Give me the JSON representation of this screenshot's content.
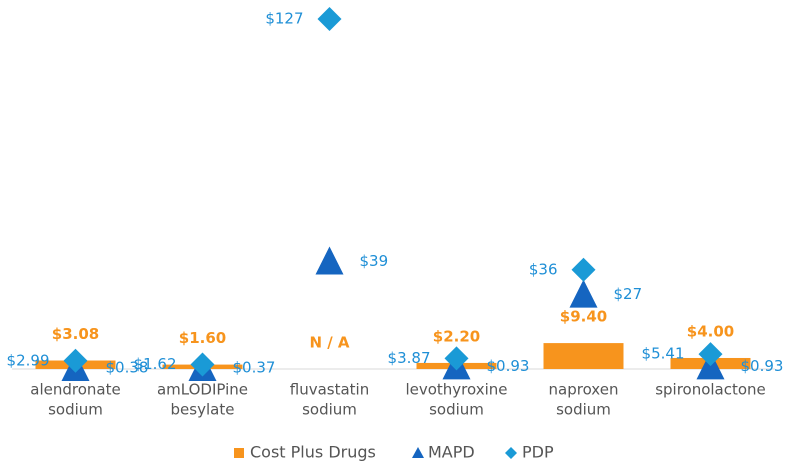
{
  "chart_data": {
    "type": "combo",
    "categories": [
      [
        "alendronate",
        "sodium"
      ],
      [
        "amLODIPine",
        "besylate"
      ],
      [
        "fluvastatin",
        "sodium"
      ],
      [
        "levothyroxine",
        "sodium"
      ],
      [
        "naproxen",
        "sodium"
      ],
      [
        "spironolactone"
      ]
    ],
    "ylim": [
      0,
      127
    ],
    "series": [
      {
        "name": "Cost Plus Drugs",
        "kind": "bar",
        "color": "#f7941d",
        "values": [
          3.08,
          1.6,
          null,
          2.2,
          9.4,
          4.0
        ],
        "value_labels": [
          "$3.08",
          "$1.60",
          "N / A",
          "$2.20",
          "$9.40",
          "$4.00"
        ]
      },
      {
        "name": "MAPD",
        "kind": "triangle",
        "color": "#1565c0",
        "values": [
          0.38,
          0.37,
          39,
          0.93,
          27,
          0.93
        ],
        "value_labels": [
          "$0.38",
          "$0.37",
          "$39",
          "$0.93",
          "$27",
          "$0.93"
        ]
      },
      {
        "name": "PDP",
        "kind": "diamond",
        "color": "#1a9ad6",
        "values": [
          2.99,
          1.62,
          127,
          3.87,
          36,
          5.41
        ],
        "value_labels": [
          "$2.99",
          "$1.62",
          "$127",
          "$3.87",
          "$36",
          "$5.41"
        ]
      }
    ]
  }
}
